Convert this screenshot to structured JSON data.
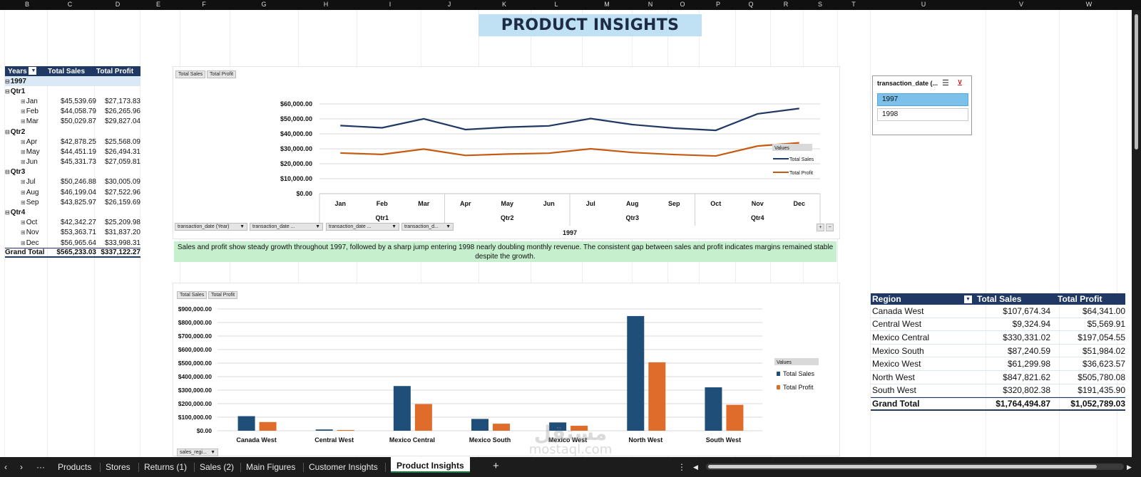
{
  "column_headers": [
    "B",
    "C",
    "D",
    "E",
    "F",
    "G",
    "H",
    "I",
    "J",
    "K",
    "L",
    "M",
    "N",
    "O",
    "P",
    "Q",
    "R",
    "S",
    "T",
    "U",
    "V",
    "W"
  ],
  "title": "PRODUCT INSIGHTS",
  "pivot_left": {
    "headers": {
      "rows": "Years",
      "sales": "Total Sales",
      "profit": "Total Profit"
    },
    "year": "1997",
    "quarters": [
      {
        "label": "Qtr1",
        "months": [
          {
            "label": "Jan",
            "sales": "$45,539.69",
            "profit": "$27,173.83"
          },
          {
            "label": "Feb",
            "sales": "$44,058.79",
            "profit": "$26,265.96"
          },
          {
            "label": "Mar",
            "sales": "$50,029.87",
            "profit": "$29,827.04"
          }
        ]
      },
      {
        "label": "Qtr2",
        "months": [
          {
            "label": "Apr",
            "sales": "$42,878.25",
            "profit": "$25,568.09"
          },
          {
            "label": "May",
            "sales": "$44,451.19",
            "profit": "$26,494.31"
          },
          {
            "label": "Jun",
            "sales": "$45,331.73",
            "profit": "$27,059.81"
          }
        ]
      },
      {
        "label": "Qtr3",
        "months": [
          {
            "label": "Jul",
            "sales": "$50,246.88",
            "profit": "$30,005.09"
          },
          {
            "label": "Aug",
            "sales": "$46,199.04",
            "profit": "$27,522.96"
          },
          {
            "label": "Sep",
            "sales": "$43,825.97",
            "profit": "$26,159.69"
          }
        ]
      },
      {
        "label": "Qtr4",
        "months": [
          {
            "label": "Oct",
            "sales": "$42,342.27",
            "profit": "$25,209.98"
          },
          {
            "label": "Nov",
            "sales": "$53,363.71",
            "profit": "$31,837.20"
          },
          {
            "label": "Dec",
            "sales": "$56,965.64",
            "profit": "$33,998.31"
          }
        ]
      }
    ],
    "grand_total": {
      "label": "Grand Total",
      "sales": "$565,233.03",
      "profit": "$337,122.27"
    }
  },
  "line_chart_ui": {
    "top_buttons": [
      "Total Sales",
      "Total Profit"
    ],
    "field_buttons": [
      "transaction_date (Year)",
      "transaction_date ...",
      "transaction_date ...",
      "transaction_d..."
    ],
    "legend_title": "Values",
    "expand_buttons": [
      "+",
      "−"
    ]
  },
  "summary_text": "Sales and profit show steady growth throughout 1997, followed by a sharp jump entering 1998 nearly doubling monthly revenue. The consistent gap between sales and profit indicates margins remained stable despite the growth.",
  "bar_chart_ui": {
    "top_buttons": [
      "Total Sales",
      "Total Profit"
    ],
    "field_button": "sales_regi...",
    "legend_title": "Values"
  },
  "slicer": {
    "title": "transaction_date (...",
    "items": [
      {
        "label": "1997",
        "selected": true
      },
      {
        "label": "1998",
        "selected": false
      }
    ]
  },
  "pivot_right": {
    "headers": {
      "region": "Region",
      "sales": "Total Sales",
      "profit": "Total Profit"
    },
    "rows": [
      {
        "region": "Canada West",
        "sales": "$107,674.34",
        "profit": "$64,341.00"
      },
      {
        "region": "Central West",
        "sales": "$9,324.94",
        "profit": "$5,569.91"
      },
      {
        "region": "Mexico Central",
        "sales": "$330,331.02",
        "profit": "$197,054.55"
      },
      {
        "region": "Mexico South",
        "sales": "$87,240.59",
        "profit": "$51,984.02"
      },
      {
        "region": "Mexico West",
        "sales": "$61,299.98",
        "profit": "$36,623.57"
      },
      {
        "region": "North West",
        "sales": "$847,821.62",
        "profit": "$505,780.08"
      },
      {
        "region": "South West",
        "sales": "$320,802.38",
        "profit": "$191,435.90"
      }
    ],
    "grand_total": {
      "region": "Grand Total",
      "sales": "$1,764,494.87",
      "profit": "$1,052,789.03"
    }
  },
  "sheet_tabs": {
    "more": "···",
    "tabs": [
      "Products",
      "Stores",
      "Returns (1)",
      "Sales (2)",
      "Main Figures",
      "Customer Insights",
      "Product Insights"
    ],
    "active": "Product Insights",
    "add": "+",
    "options": "⋮"
  },
  "watermark": {
    "line1": "مستقل",
    "line2": "mostaql.com"
  },
  "colors": {
    "sales": "#1f3864",
    "profit": "#c55a11",
    "bar_sales": "#1f4e79",
    "bar_profit": "#e06c2c",
    "title_bg": "#bfe1f3",
    "summary_bg": "#c6efce",
    "slicer_selected": "#7cc1ec"
  },
  "chart_data": [
    {
      "type": "line",
      "categories": [
        "Jan",
        "Feb",
        "Mar",
        "Apr",
        "May",
        "Jun",
        "Jul",
        "Aug",
        "Sep",
        "Oct",
        "Nov",
        "Dec"
      ],
      "quarters": [
        "Qtr1",
        "Qtr2",
        "Qtr3",
        "Qtr4"
      ],
      "year_label": "1997",
      "series": [
        {
          "name": "Total Sales",
          "values": [
            45539.69,
            44058.79,
            50029.87,
            42878.25,
            44451.19,
            45331.73,
            50246.88,
            46199.04,
            43825.97,
            42342.27,
            53363.71,
            56965.64
          ]
        },
        {
          "name": "Total Profit",
          "values": [
            27173.83,
            26265.96,
            29827.04,
            25568.09,
            26494.31,
            27059.81,
            30005.09,
            27522.96,
            26159.69,
            25209.98,
            31837.2,
            33998.31
          ]
        }
      ],
      "yticks": [
        "$0.00",
        "$10,000.00",
        "$20,000.00",
        "$30,000.00",
        "$40,000.00",
        "$50,000.00",
        "$60,000.00"
      ],
      "ylim": [
        0,
        60000
      ],
      "legend": "right",
      "grid": true
    },
    {
      "type": "bar",
      "categories": [
        "Canada West",
        "Central West",
        "Mexico Central",
        "Mexico South",
        "Mexico West",
        "North West",
        "South West"
      ],
      "series": [
        {
          "name": "Total Sales",
          "values": [
            107674.34,
            9324.94,
            330331.02,
            87240.59,
            61299.98,
            847821.62,
            320802.38
          ]
        },
        {
          "name": "Total Profit",
          "values": [
            64341.0,
            5569.91,
            197054.55,
            51984.02,
            36623.57,
            505780.08,
            191435.9
          ]
        }
      ],
      "yticks": [
        "$0.00",
        "$100,000.00",
        "$200,000.00",
        "$300,000.00",
        "$400,000.00",
        "$500,000.00",
        "$600,000.00",
        "$700,000.00",
        "$800,000.00",
        "$900,000.00"
      ],
      "ylim": [
        0,
        900000
      ],
      "legend": "right",
      "grid": true
    }
  ]
}
